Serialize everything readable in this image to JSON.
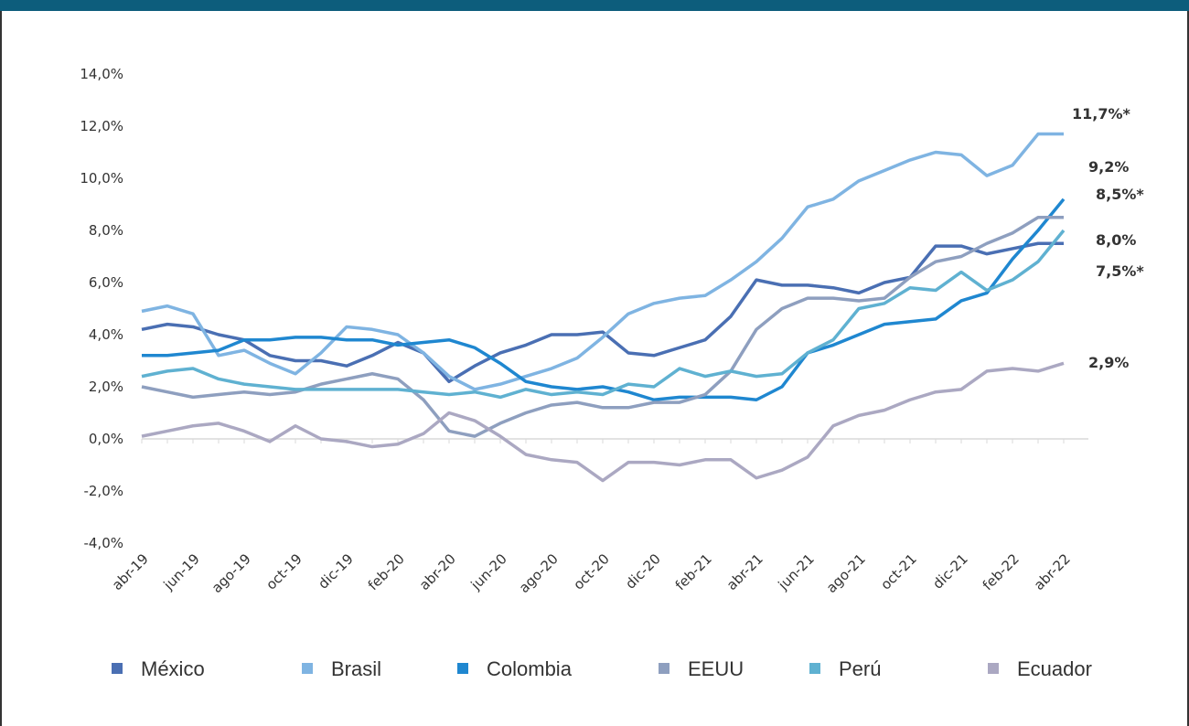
{
  "chart_data": {
    "type": "line",
    "categories": [
      "abr-19",
      null,
      "jun-19",
      null,
      "ago-19",
      null,
      "oct-19",
      null,
      "dic-19",
      null,
      "feb-20",
      null,
      "abr-20",
      null,
      "jun-20",
      null,
      "ago-20",
      null,
      "oct-20",
      null,
      "dic-20",
      null,
      "feb-21",
      null,
      "abr-21",
      null,
      "jun-21",
      null,
      "ago-21",
      null,
      "oct-21",
      null,
      "dic-21",
      null,
      "feb-22",
      null,
      "abr-22"
    ],
    "series": [
      {
        "name": "México",
        "color": "#4a6fb3",
        "values": [
          4.2,
          4.4,
          4.3,
          4.0,
          3.8,
          3.2,
          3.0,
          3.0,
          2.8,
          3.2,
          3.7,
          3.3,
          2.2,
          2.8,
          3.3,
          3.6,
          4.0,
          4.0,
          4.1,
          3.3,
          3.2,
          3.5,
          3.8,
          4.7,
          6.1,
          5.9,
          5.9,
          5.8,
          5.6,
          6.0,
          6.2,
          7.4,
          7.4,
          7.1,
          7.3,
          7.5,
          7.5
        ]
      },
      {
        "name": "Brasil",
        "color": "#7fb4e2",
        "values": [
          4.9,
          5.1,
          4.8,
          3.2,
          3.4,
          2.9,
          2.5,
          3.3,
          4.3,
          4.2,
          4.0,
          3.3,
          2.4,
          1.9,
          2.1,
          2.4,
          2.7,
          3.1,
          3.9,
          4.8,
          5.2,
          5.4,
          5.5,
          6.1,
          6.8,
          7.7,
          8.9,
          9.2,
          9.9,
          10.3,
          10.7,
          11.0,
          10.9,
          10.1,
          10.5,
          11.7,
          11.7
        ]
      },
      {
        "name": "Colombia",
        "color": "#1f87d0",
        "values": [
          3.2,
          3.2,
          3.3,
          3.4,
          3.8,
          3.8,
          3.9,
          3.9,
          3.8,
          3.8,
          3.6,
          3.7,
          3.8,
          3.5,
          2.9,
          2.2,
          2.0,
          1.9,
          2.0,
          1.8,
          1.5,
          1.6,
          1.6,
          1.6,
          1.5,
          2.0,
          3.3,
          3.6,
          4.0,
          4.4,
          4.5,
          4.6,
          5.3,
          5.6,
          6.9,
          8.0,
          9.2
        ]
      },
      {
        "name": "EEUU",
        "color": "#8e9fbf",
        "values": [
          2.0,
          1.8,
          1.6,
          1.7,
          1.8,
          1.7,
          1.8,
          2.1,
          2.3,
          2.5,
          2.3,
          1.5,
          0.3,
          0.1,
          0.6,
          1.0,
          1.3,
          1.4,
          1.2,
          1.2,
          1.4,
          1.4,
          1.7,
          2.6,
          4.2,
          5.0,
          5.4,
          5.4,
          5.3,
          5.4,
          6.2,
          6.8,
          7.0,
          7.5,
          7.9,
          8.5,
          8.5
        ]
      },
      {
        "name": "Perú",
        "color": "#5fb1d1",
        "values": [
          2.4,
          2.6,
          2.7,
          2.3,
          2.1,
          2.0,
          1.9,
          1.9,
          1.9,
          1.9,
          1.9,
          1.8,
          1.7,
          1.8,
          1.6,
          1.9,
          1.7,
          1.8,
          1.7,
          2.1,
          2.0,
          2.7,
          2.4,
          2.6,
          2.4,
          2.5,
          3.3,
          3.8,
          5.0,
          5.2,
          5.8,
          5.7,
          6.4,
          5.7,
          6.1,
          6.8,
          8.0
        ]
      },
      {
        "name": "Ecuador",
        "color": "#aba8c2",
        "values": [
          0.1,
          0.3,
          0.5,
          0.6,
          0.3,
          -0.1,
          0.5,
          0.0,
          -0.1,
          -0.3,
          -0.2,
          0.2,
          1.0,
          0.7,
          0.1,
          -0.6,
          -0.8,
          -0.9,
          -1.6,
          -0.9,
          -0.9,
          -1.0,
          -0.8,
          -0.8,
          -1.5,
          -1.2,
          -0.7,
          0.5,
          0.9,
          1.1,
          1.5,
          1.8,
          1.9,
          2.6,
          2.7,
          2.6,
          2.9
        ]
      }
    ],
    "ylim": [
      -4,
      14
    ],
    "yticks": [
      {
        "value": -4,
        "label": "-4,0%"
      },
      {
        "value": -2,
        "label": "-2,0%"
      },
      {
        "value": 0,
        "label": "0,0%"
      },
      {
        "value": 2,
        "label": "2,0%"
      },
      {
        "value": 4,
        "label": "4,0%"
      },
      {
        "value": 6,
        "label": "6,0%"
      },
      {
        "value": 8,
        "label": "8,0%"
      },
      {
        "value": 10,
        "label": "10,0%"
      },
      {
        "value": 12,
        "label": "12,0%"
      },
      {
        "value": 14,
        "label": "14,0%"
      }
    ],
    "annotations": [
      "11,7%*",
      "9,2%",
      "8,5%*",
      "8,0%",
      "7,5%*",
      "2,9%"
    ]
  }
}
